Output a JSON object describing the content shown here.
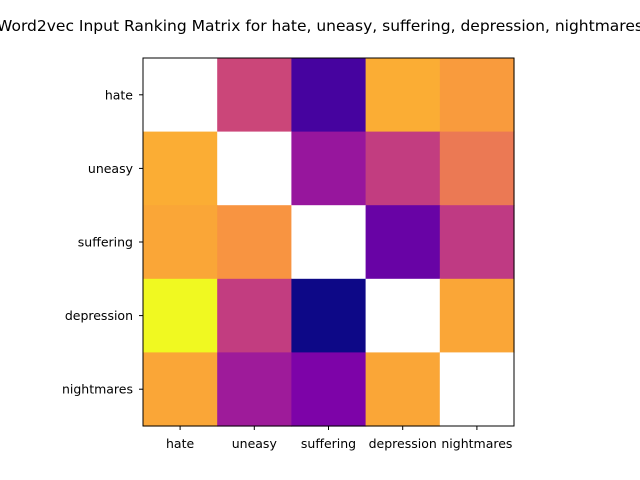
{
  "chart_data": {
    "type": "heatmap",
    "title": "Word2vec Input Ranking Matrix for hate, uneasy, suffering, depression, nightmares",
    "xlabel": "",
    "ylabel": "",
    "colormap": "plasma",
    "x_categories": [
      "hate",
      "uneasy",
      "suffering",
      "depression",
      "nightmares"
    ],
    "y_categories": [
      "hate",
      "uneasy",
      "suffering",
      "depression",
      "nightmares"
    ],
    "color_range": [
      0,
      1
    ],
    "values": [
      [
        null,
        0.5,
        0.12,
        0.82,
        0.77
      ],
      [
        0.82,
        null,
        0.33,
        0.47,
        0.67
      ],
      [
        0.8,
        0.75,
        null,
        0.2,
        0.46
      ],
      [
        1.0,
        0.47,
        0.0,
        null,
        0.8
      ],
      [
        0.8,
        0.35,
        0.25,
        0.8,
        null
      ]
    ],
    "diagonal_color": "#ffffff",
    "grid": false,
    "legend": "none"
  }
}
